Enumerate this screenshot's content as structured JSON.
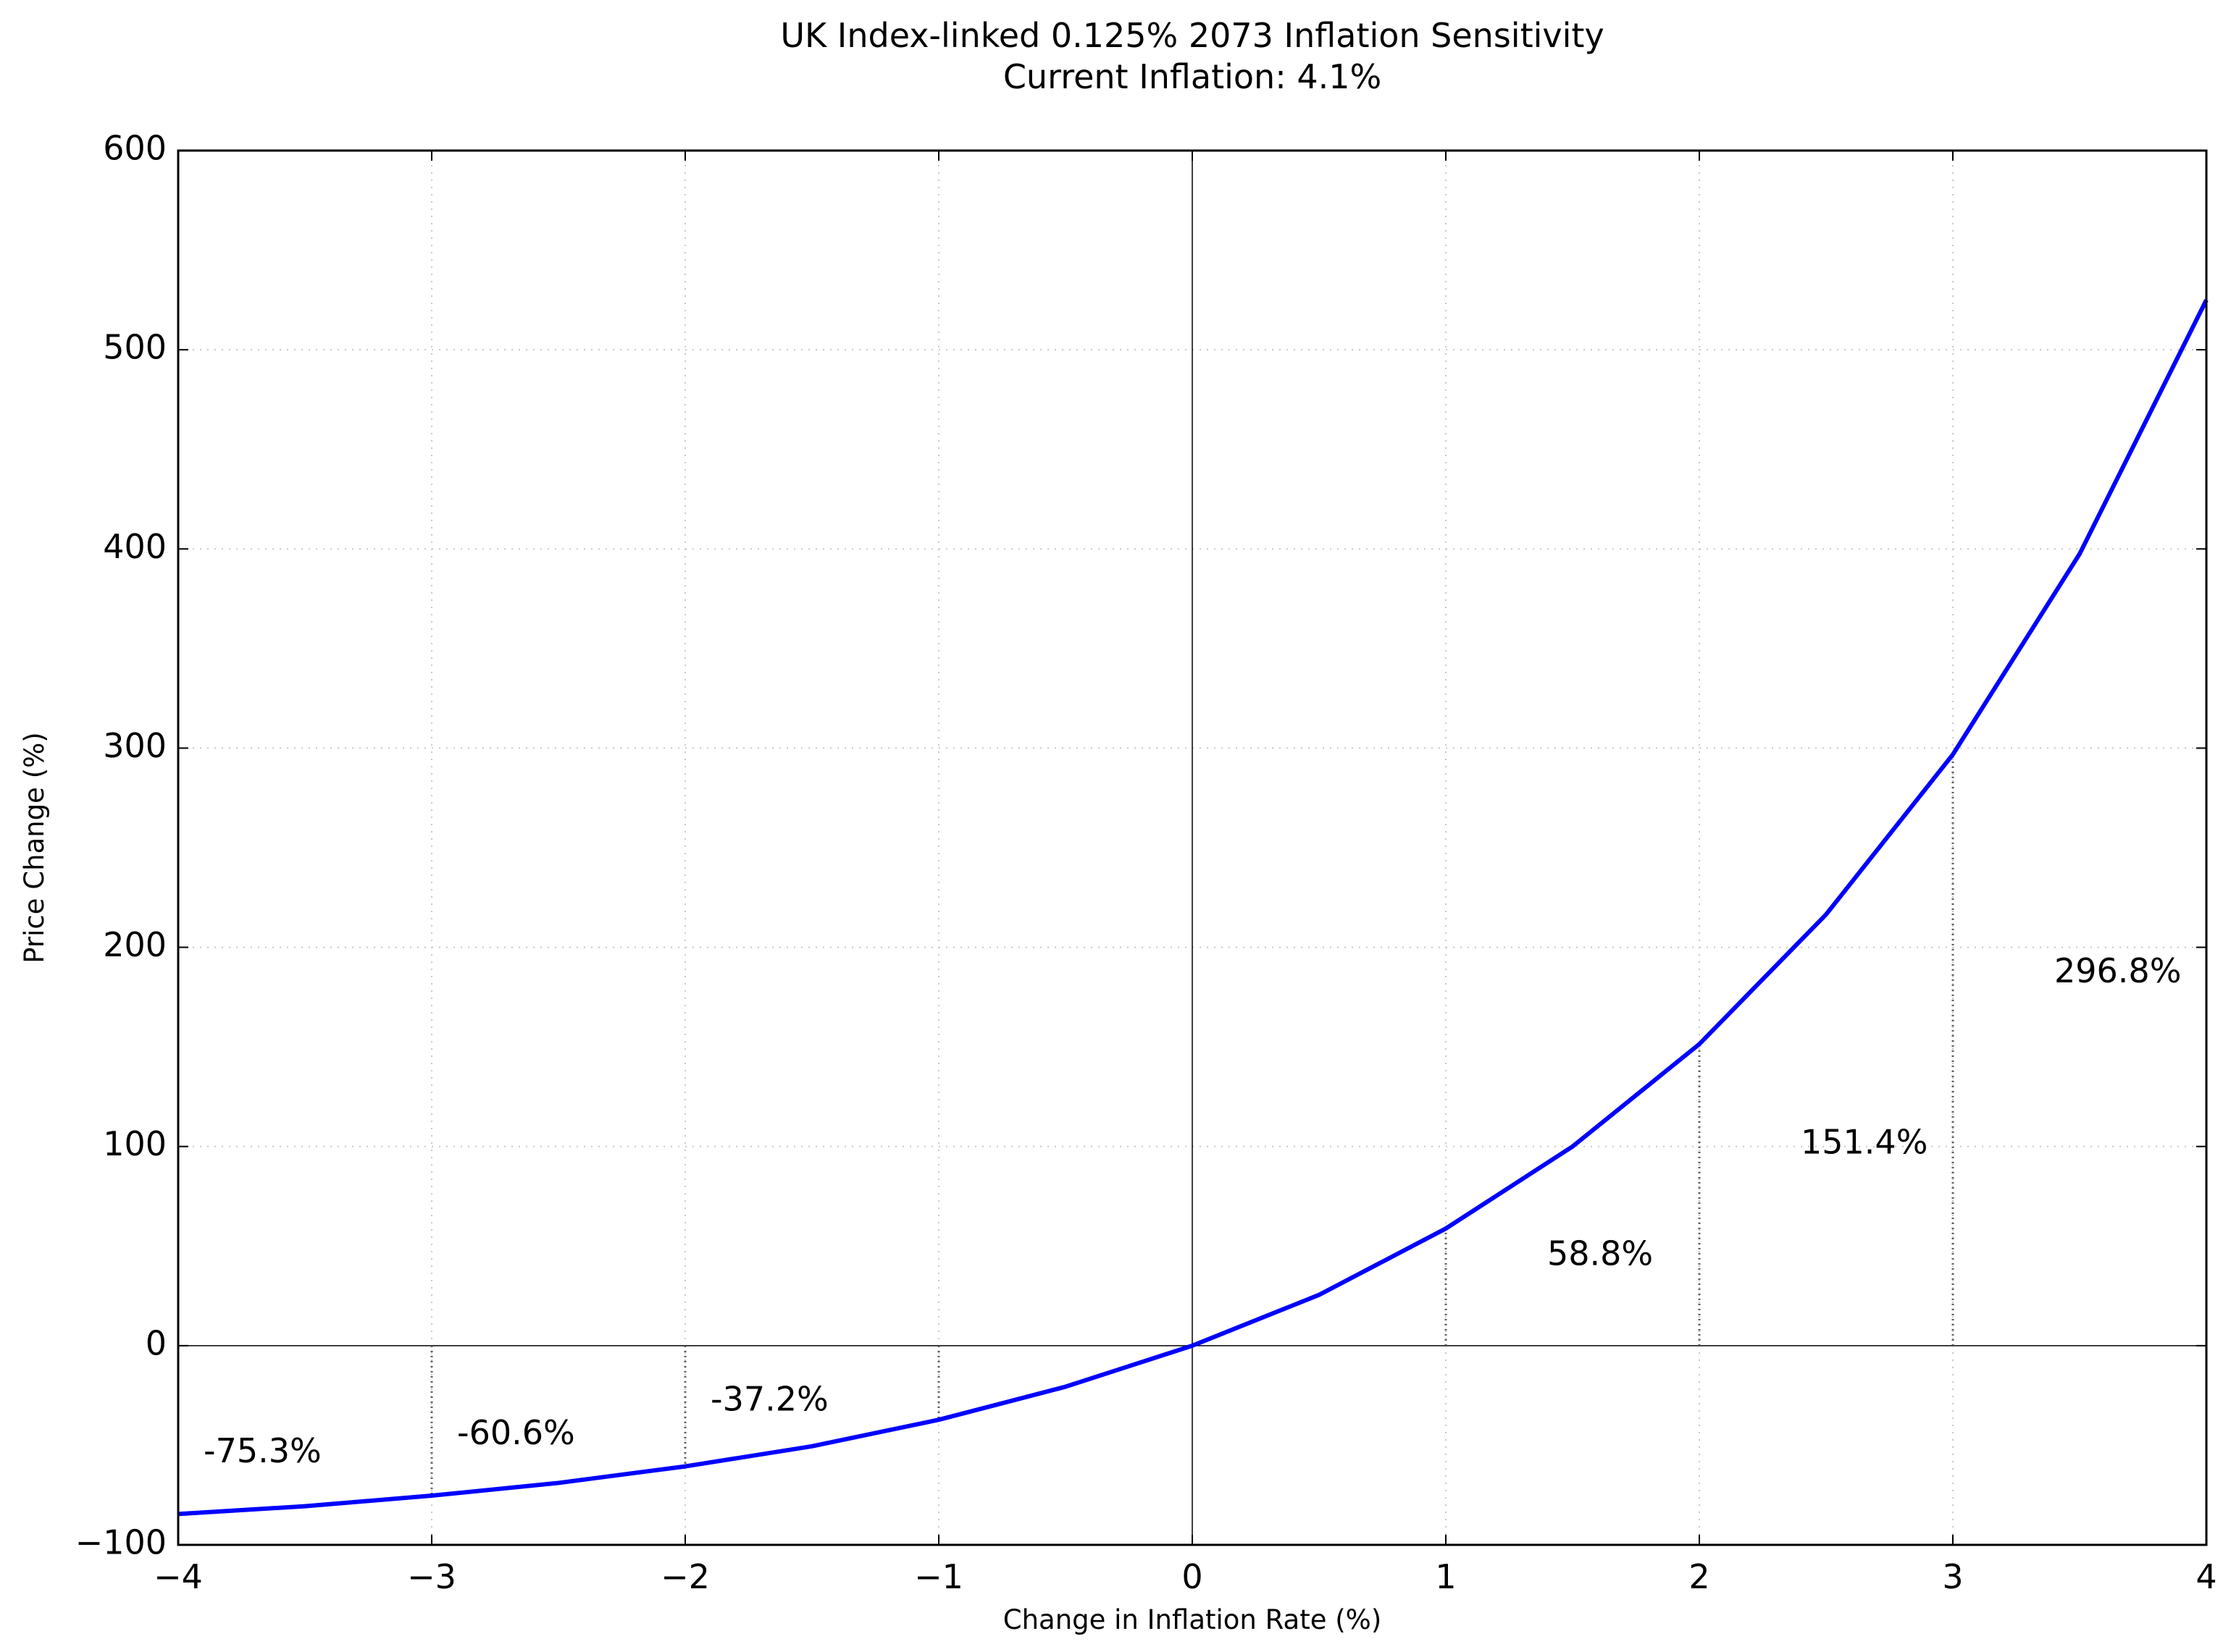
{
  "chart_data": {
    "type": "line",
    "title": "UK Index-linked 0.125% 2073 Inflation Sensitivity",
    "subtitle": "Current Inflation: 4.1%",
    "xlabel": "Change in Inflation Rate (%)",
    "ylabel": "Price Change (%)",
    "xlim": [
      -4,
      4
    ],
    "ylim": [
      -100,
      600
    ],
    "x_ticks": [
      -4,
      -3,
      -2,
      -1,
      0,
      1,
      2,
      3,
      4
    ],
    "x_tick_labels": [
      "−4",
      "−3",
      "−2",
      "−1",
      "0",
      "1",
      "2",
      "3",
      "4"
    ],
    "y_ticks": [
      -100,
      0,
      100,
      200,
      300,
      400,
      500,
      600
    ],
    "y_tick_labels": [
      "−100",
      "0",
      "100",
      "200",
      "300",
      "400",
      "500",
      "600"
    ],
    "grid": true,
    "series": [
      {
        "color": "#0000ff",
        "x": [
          -4,
          -3.5,
          -3,
          -2.5,
          -2,
          -1.5,
          -1,
          -0.5,
          0,
          0.5,
          1,
          1.5,
          2,
          2.5,
          3,
          3.5,
          4
        ],
        "values": [
          -84.5,
          -80.6,
          -75.3,
          -68.9,
          -60.6,
          -50.5,
          -37.2,
          -20.6,
          0,
          25.5,
          58.8,
          100,
          151.4,
          216.5,
          296.8,
          397.5,
          525
        ]
      }
    ],
    "annotations": [
      {
        "x": -3,
        "y": -75.3,
        "label": "-75.3%",
        "text_x": -3.9,
        "text_y": -54
      },
      {
        "x": -2,
        "y": -60.6,
        "label": "-60.6%",
        "text_x": -2.9,
        "text_y": -45
      },
      {
        "x": -1,
        "y": -37.2,
        "label": "-37.2%",
        "text_x": -1.9,
        "text_y": -28
      },
      {
        "x": 1,
        "y": 58.8,
        "label": "58.8%",
        "text_x": 1.4,
        "text_y": 45
      },
      {
        "x": 2,
        "y": 151.4,
        "label": "151.4%",
        "text_x": 2.4,
        "text_y": 101
      },
      {
        "x": 3,
        "y": 296.8,
        "label": "296.8%",
        "text_x": 3.4,
        "text_y": 187
      }
    ]
  }
}
